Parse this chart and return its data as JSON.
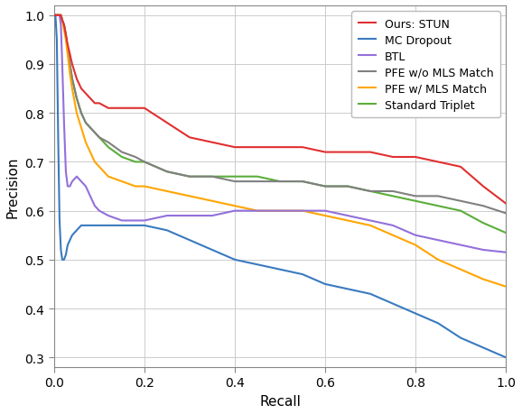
{
  "title": "",
  "xlabel": "Recall",
  "ylabel": "Precision",
  "xlim": [
    0.0,
    1.0
  ],
  "ylim": [
    0.28,
    1.02
  ],
  "legend_entries": [
    "Ours: STUN",
    "MC Dropout",
    "BTL",
    "PFE w/o MLS Match",
    "PFE w/ MLS Match",
    "Standard Triplet"
  ],
  "colors": {
    "STUN": "#e03030",
    "MC_Dropout": "#3a7abf",
    "BTL": "#9370db",
    "PFE_wo": "#808080",
    "PFE_w": "#ffa500",
    "Standard_Triplet": "#5aad3a"
  },
  "linewidth": 1.5,
  "curves": {
    "STUN": {
      "recall": [
        0.0,
        0.003,
        0.006,
        0.009,
        0.012,
        0.015,
        0.018,
        0.022,
        0.026,
        0.03,
        0.035,
        0.04,
        0.05,
        0.06,
        0.07,
        0.08,
        0.09,
        0.1,
        0.12,
        0.14,
        0.16,
        0.18,
        0.2,
        0.25,
        0.3,
        0.35,
        0.4,
        0.45,
        0.5,
        0.55,
        0.6,
        0.65,
        0.7,
        0.75,
        0.8,
        0.85,
        0.9,
        0.95,
        1.0
      ],
      "precision": [
        1.0,
        1.0,
        1.0,
        1.0,
        1.0,
        1.0,
        0.99,
        0.98,
        0.96,
        0.94,
        0.92,
        0.9,
        0.87,
        0.85,
        0.84,
        0.83,
        0.82,
        0.82,
        0.81,
        0.81,
        0.81,
        0.81,
        0.81,
        0.78,
        0.75,
        0.74,
        0.73,
        0.73,
        0.73,
        0.73,
        0.72,
        0.72,
        0.72,
        0.71,
        0.71,
        0.7,
        0.69,
        0.65,
        0.615
      ]
    },
    "MC_Dropout": {
      "recall": [
        0.0,
        0.003,
        0.006,
        0.009,
        0.012,
        0.015,
        0.018,
        0.022,
        0.026,
        0.03,
        0.04,
        0.05,
        0.06,
        0.07,
        0.08,
        0.09,
        0.1,
        0.12,
        0.15,
        0.18,
        0.2,
        0.25,
        0.3,
        0.35,
        0.4,
        0.45,
        0.5,
        0.55,
        0.6,
        0.65,
        0.7,
        0.75,
        0.8,
        0.85,
        0.9,
        0.95,
        1.0
      ],
      "precision": [
        1.0,
        1.0,
        0.95,
        0.75,
        0.58,
        0.52,
        0.5,
        0.5,
        0.51,
        0.53,
        0.55,
        0.56,
        0.57,
        0.57,
        0.57,
        0.57,
        0.57,
        0.57,
        0.57,
        0.57,
        0.57,
        0.56,
        0.54,
        0.52,
        0.5,
        0.49,
        0.48,
        0.47,
        0.45,
        0.44,
        0.43,
        0.41,
        0.39,
        0.37,
        0.34,
        0.32,
        0.3
      ]
    },
    "BTL": {
      "recall": [
        0.0,
        0.003,
        0.006,
        0.009,
        0.012,
        0.015,
        0.018,
        0.022,
        0.026,
        0.03,
        0.035,
        0.04,
        0.05,
        0.06,
        0.07,
        0.08,
        0.09,
        0.1,
        0.12,
        0.15,
        0.18,
        0.2,
        0.25,
        0.3,
        0.35,
        0.4,
        0.45,
        0.5,
        0.55,
        0.6,
        0.65,
        0.7,
        0.75,
        0.8,
        0.85,
        0.9,
        0.95,
        1.0
      ],
      "precision": [
        1.0,
        1.0,
        1.0,
        1.0,
        1.0,
        0.98,
        0.9,
        0.78,
        0.68,
        0.65,
        0.65,
        0.66,
        0.67,
        0.66,
        0.65,
        0.63,
        0.61,
        0.6,
        0.59,
        0.58,
        0.58,
        0.58,
        0.59,
        0.59,
        0.59,
        0.6,
        0.6,
        0.6,
        0.6,
        0.6,
        0.59,
        0.58,
        0.57,
        0.55,
        0.54,
        0.53,
        0.52,
        0.515
      ]
    },
    "PFE_wo": {
      "recall": [
        0.0,
        0.003,
        0.006,
        0.009,
        0.012,
        0.015,
        0.018,
        0.022,
        0.026,
        0.03,
        0.035,
        0.04,
        0.05,
        0.06,
        0.07,
        0.08,
        0.09,
        0.1,
        0.12,
        0.15,
        0.18,
        0.2,
        0.25,
        0.3,
        0.35,
        0.4,
        0.45,
        0.5,
        0.55,
        0.6,
        0.65,
        0.7,
        0.75,
        0.8,
        0.85,
        0.9,
        0.95,
        1.0
      ],
      "precision": [
        1.0,
        1.0,
        1.0,
        1.0,
        1.0,
        1.0,
        0.99,
        0.98,
        0.96,
        0.93,
        0.9,
        0.87,
        0.83,
        0.8,
        0.78,
        0.77,
        0.76,
        0.75,
        0.74,
        0.72,
        0.71,
        0.7,
        0.68,
        0.67,
        0.67,
        0.66,
        0.66,
        0.66,
        0.66,
        0.65,
        0.65,
        0.64,
        0.64,
        0.63,
        0.63,
        0.62,
        0.61,
        0.595
      ]
    },
    "PFE_w": {
      "recall": [
        0.0,
        0.003,
        0.006,
        0.009,
        0.012,
        0.015,
        0.018,
        0.022,
        0.026,
        0.03,
        0.035,
        0.04,
        0.05,
        0.06,
        0.07,
        0.08,
        0.09,
        0.1,
        0.12,
        0.15,
        0.18,
        0.2,
        0.25,
        0.3,
        0.35,
        0.4,
        0.45,
        0.5,
        0.55,
        0.6,
        0.65,
        0.7,
        0.75,
        0.8,
        0.85,
        0.9,
        0.95,
        1.0
      ],
      "precision": [
        1.0,
        1.0,
        1.0,
        1.0,
        1.0,
        1.0,
        0.99,
        0.97,
        0.95,
        0.92,
        0.88,
        0.85,
        0.8,
        0.77,
        0.74,
        0.72,
        0.7,
        0.69,
        0.67,
        0.66,
        0.65,
        0.65,
        0.64,
        0.63,
        0.62,
        0.61,
        0.6,
        0.6,
        0.6,
        0.59,
        0.58,
        0.57,
        0.55,
        0.53,
        0.5,
        0.48,
        0.46,
        0.445
      ]
    },
    "Standard_Triplet": {
      "recall": [
        0.0,
        0.003,
        0.006,
        0.009,
        0.012,
        0.015,
        0.018,
        0.022,
        0.026,
        0.03,
        0.035,
        0.04,
        0.05,
        0.06,
        0.07,
        0.08,
        0.09,
        0.1,
        0.12,
        0.15,
        0.18,
        0.2,
        0.25,
        0.3,
        0.35,
        0.4,
        0.45,
        0.5,
        0.55,
        0.6,
        0.65,
        0.7,
        0.75,
        0.8,
        0.85,
        0.9,
        0.95,
        1.0
      ],
      "precision": [
        1.0,
        1.0,
        1.0,
        1.0,
        1.0,
        1.0,
        0.99,
        0.98,
        0.96,
        0.93,
        0.9,
        0.87,
        0.83,
        0.8,
        0.78,
        0.77,
        0.76,
        0.75,
        0.73,
        0.71,
        0.7,
        0.7,
        0.68,
        0.67,
        0.67,
        0.67,
        0.67,
        0.66,
        0.66,
        0.65,
        0.65,
        0.64,
        0.63,
        0.62,
        0.61,
        0.6,
        0.575,
        0.555
      ]
    }
  },
  "figsize": [
    5.78,
    4.6
  ],
  "dpi": 100
}
